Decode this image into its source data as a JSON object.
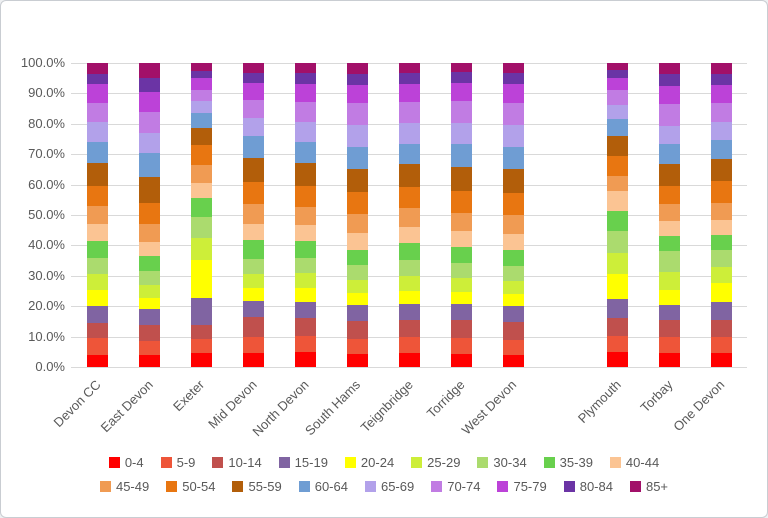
{
  "chart_data": {
    "type": "bar",
    "subtype": "stacked_100_percent",
    "title": "",
    "xlabel": "",
    "ylabel": "",
    "grid": true,
    "legend_position": "bottom",
    "legend_rows": 2,
    "y_axis": {
      "min": 0,
      "max": 100,
      "step": 10,
      "tick_labels": [
        "0.0%",
        "10.0%",
        "20.0%",
        "30.0%",
        "40.0%",
        "50.0%",
        "60.0%",
        "70.0%",
        "80.0%",
        "90.0%",
        "100.0%"
      ]
    },
    "categories": [
      "Devon CC",
      "East Devon",
      "Exeter",
      "Mid Devon",
      "North Devon",
      "South Hams",
      "Teignbridge",
      "Torridge",
      "West Devon",
      "",
      "Plymouth",
      "Torbay",
      "One Devon"
    ],
    "series": [
      {
        "name": "0-4",
        "color": "#FF0000",
        "values": [
          4.0,
          3.8,
          4.5,
          4.7,
          4.8,
          4.3,
          4.5,
          4.4,
          4.0,
          null,
          5.0,
          4.6,
          4.6
        ]
      },
      {
        "name": "5-9",
        "color": "#EE5539",
        "values": [
          5.5,
          4.8,
          4.8,
          5.3,
          5.4,
          5.0,
          5.3,
          5.2,
          5.0,
          null,
          5.3,
          5.4,
          5.3
        ]
      },
      {
        "name": "10-14",
        "color": "#C0504D",
        "values": [
          5.0,
          5.2,
          4.5,
          6.3,
          5.9,
          6.0,
          5.8,
          5.9,
          5.8,
          null,
          5.7,
          5.5,
          5.6
        ]
      },
      {
        "name": "15-19",
        "color": "#8064A2",
        "values": [
          5.5,
          5.2,
          9.0,
          5.4,
          5.4,
          5.2,
          5.0,
          5.1,
          5.2,
          null,
          6.3,
          5.0,
          5.8
        ]
      },
      {
        "name": "20-24",
        "color": "#FFFF00",
        "values": [
          5.5,
          3.8,
          12.5,
          4.3,
          4.5,
          4.0,
          4.4,
          4.2,
          3.9,
          null,
          8.2,
          5.0,
          6.2
        ]
      },
      {
        "name": "25-29",
        "color": "#CDEE39",
        "values": [
          5.0,
          4.2,
          7.2,
          4.5,
          4.8,
          4.3,
          4.8,
          4.6,
          4.4,
          null,
          7.0,
          5.7,
          5.5
        ]
      },
      {
        "name": "30-34",
        "color": "#ABDB6E",
        "values": [
          5.5,
          4.6,
          6.8,
          5.0,
          5.2,
          4.7,
          5.3,
          4.9,
          4.9,
          null,
          7.2,
          7.0,
          5.6
        ]
      },
      {
        "name": "35-39",
        "color": "#68D04D",
        "values": [
          5.5,
          4.8,
          6.2,
          6.3,
          5.5,
          5.0,
          5.6,
          5.3,
          5.2,
          null,
          6.6,
          4.9,
          4.8
        ]
      },
      {
        "name": "40-44",
        "color": "#FBC493",
        "values": [
          5.5,
          4.8,
          5.0,
          5.2,
          5.3,
          5.5,
          5.5,
          5.2,
          5.4,
          null,
          6.6,
          4.9,
          4.9
        ]
      },
      {
        "name": "45-49",
        "color": "#F09B53",
        "values": [
          6.0,
          5.8,
          6.0,
          6.5,
          6.0,
          6.3,
          6.2,
          6.0,
          6.2,
          null,
          4.9,
          5.6,
          5.8
        ]
      },
      {
        "name": "50-54",
        "color": "#E87611",
        "values": [
          6.5,
          7.0,
          6.5,
          7.3,
          6.9,
          7.2,
          6.9,
          7.0,
          7.2,
          null,
          6.6,
          5.9,
          7.0
        ]
      },
      {
        "name": "55-59",
        "color": "#B25E0A",
        "values": [
          7.5,
          8.5,
          5.5,
          8.0,
          7.5,
          7.8,
          7.4,
          8.0,
          8.0,
          null,
          6.6,
          7.3,
          7.2
        ]
      },
      {
        "name": "60-64",
        "color": "#6F9DD3",
        "values": [
          7.0,
          8.0,
          5.0,
          7.2,
          6.8,
          7.2,
          6.8,
          7.6,
          7.3,
          null,
          5.5,
          6.6,
          6.5
        ]
      },
      {
        "name": "65-69",
        "color": "#B2A1EA",
        "values": [
          6.5,
          6.5,
          4.0,
          6.0,
          6.5,
          7.0,
          6.7,
          7.0,
          7.0,
          null,
          4.8,
          5.9,
          5.8
        ]
      },
      {
        "name": "70-74",
        "color": "#C17CE3",
        "values": [
          6.5,
          7.0,
          3.5,
          6.0,
          6.8,
          7.3,
          7.0,
          7.3,
          7.5,
          null,
          4.7,
          7.2,
          6.2
        ]
      },
      {
        "name": "75-79",
        "color": "#BC42D8",
        "values": [
          6.0,
          6.5,
          4.0,
          5.5,
          5.9,
          6.0,
          5.8,
          5.8,
          6.0,
          null,
          4.0,
          6.0,
          6.0
        ]
      },
      {
        "name": "80-84",
        "color": "#6B34A5",
        "values": [
          3.5,
          4.5,
          2.5,
          3.3,
          3.6,
          3.7,
          3.7,
          3.5,
          3.7,
          null,
          2.6,
          3.8,
          3.6
        ]
      },
      {
        "name": "85+",
        "color": "#A21069",
        "values": [
          3.5,
          5.0,
          2.5,
          3.2,
          3.2,
          3.5,
          3.3,
          3.0,
          3.3,
          null,
          2.4,
          3.7,
          3.6
        ]
      }
    ],
    "colors": {
      "gridline": "#d9d9d9",
      "axis_text": "#595959",
      "background": "#ffffff",
      "border": "#c9cdd2"
    }
  }
}
